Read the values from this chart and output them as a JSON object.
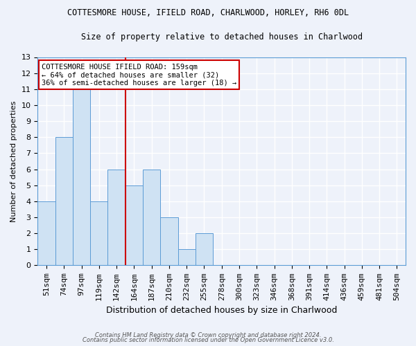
{
  "title": "COTTESMORE HOUSE, IFIELD ROAD, CHARLWOOD, HORLEY, RH6 0DL",
  "subtitle": "Size of property relative to detached houses in Charlwood",
  "xlabel": "Distribution of detached houses by size in Charlwood",
  "ylabel": "Number of detached properties",
  "bin_labels": [
    "51sqm",
    "74sqm",
    "97sqm",
    "119sqm",
    "142sqm",
    "164sqm",
    "187sqm",
    "210sqm",
    "232sqm",
    "255sqm",
    "278sqm",
    "300sqm",
    "323sqm",
    "346sqm",
    "368sqm",
    "391sqm",
    "414sqm",
    "436sqm",
    "459sqm",
    "481sqm",
    "504sqm"
  ],
  "bar_heights": [
    4,
    8,
    11,
    4,
    6,
    5,
    6,
    3,
    1,
    2,
    0,
    0,
    0,
    0,
    0,
    0,
    0,
    0,
    0,
    0,
    0
  ],
  "bar_color": "#cfe2f3",
  "bar_edge_color": "#5b9bd5",
  "red_line_color": "#cc0000",
  "annotation_text": "COTTESMORE HOUSE IFIELD ROAD: 159sqm\n← 64% of detached houses are smaller (32)\n36% of semi-detached houses are larger (18) →",
  "ylim": [
    0,
    13
  ],
  "yticks": [
    0,
    1,
    2,
    3,
    4,
    5,
    6,
    7,
    8,
    9,
    10,
    11,
    12,
    13
  ],
  "footer_line1": "Contains HM Land Registry data © Crown copyright and database right 2024.",
  "footer_line2": "Contains public sector information licensed under the Open Government Licence v3.0.",
  "background_color": "#eef2fa",
  "grid_color": "#ffffff",
  "annotation_box_color": "#ffffff",
  "annotation_box_edge": "#cc0000",
  "red_line_bin_index": 4.5,
  "title_fontsize": 8.5,
  "subtitle_fontsize": 8.5,
  "xlabel_fontsize": 9,
  "ylabel_fontsize": 8,
  "tick_fontsize": 8,
  "annot_fontsize": 7.5
}
